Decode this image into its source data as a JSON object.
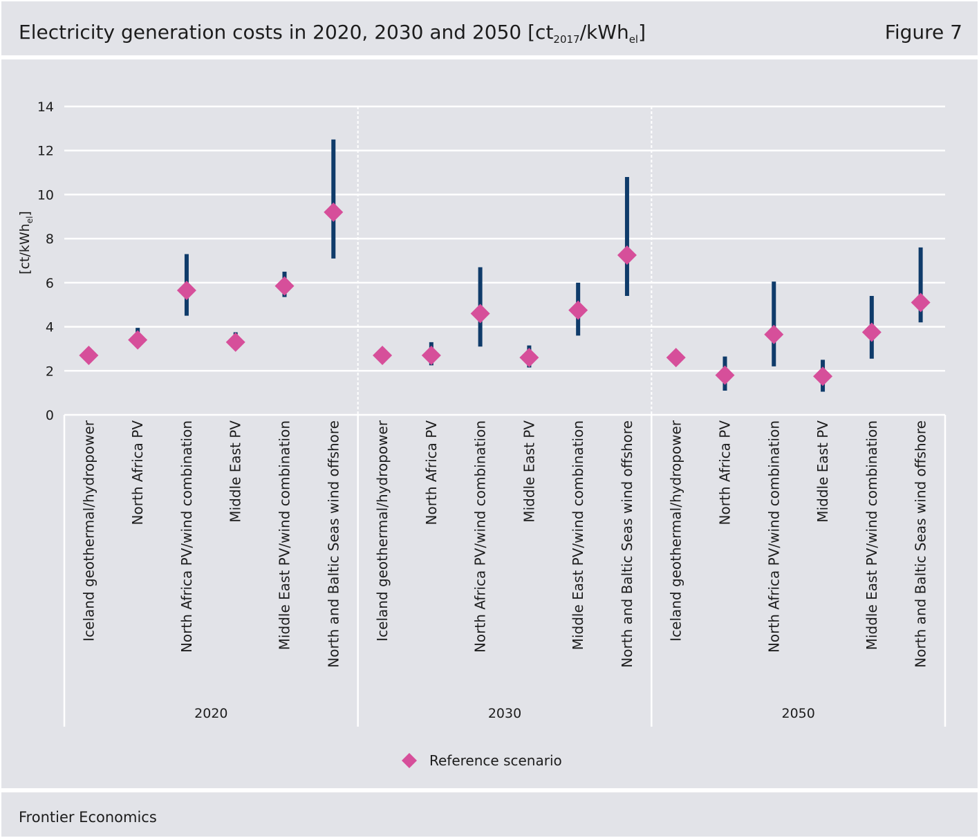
{
  "header": {
    "title_main": "Electricity generation costs in 2020, 2030 and 2050 [ct",
    "title_sub1": "2017",
    "title_mid": "/kWh",
    "title_sub2": "el",
    "title_end": "]",
    "figure_label": "Figure 7"
  },
  "footer": {
    "source": "Frontier Economics"
  },
  "chart_data": {
    "type": "scatter",
    "ylabel": "[ct/kWhel]",
    "ylim": [
      0,
      14
    ],
    "yticks": [
      0,
      2,
      4,
      6,
      8,
      10,
      12,
      14
    ],
    "grid": true,
    "legend": {
      "position": "bottom-center",
      "entries": [
        "Reference scenario"
      ]
    },
    "series": [
      {
        "name": "Reference scenario",
        "marker": "diamond",
        "color": "#d64f9a"
      }
    ],
    "range_color": "#0f3b6a",
    "groups": [
      {
        "label": "2020",
        "items": [
          {
            "category": "Iceland geothermal/hydropower",
            "value": 2.7,
            "low": null,
            "high": null
          },
          {
            "category": "North Africa PV",
            "value": 3.4,
            "low": 3.3,
            "high": 3.95
          },
          {
            "category": "North Africa PV/wind combination",
            "value": 5.65,
            "low": 4.5,
            "high": 7.3
          },
          {
            "category": "Middle East PV",
            "value": 3.3,
            "low": 3.2,
            "high": 3.75
          },
          {
            "category": "Middle East PV/wind combination",
            "value": 5.85,
            "low": 5.35,
            "high": 6.5
          },
          {
            "category": "North and Baltic Seas wind offshore",
            "value": 9.2,
            "low": 7.1,
            "high": 12.5
          }
        ]
      },
      {
        "label": "2030",
        "items": [
          {
            "category": "Iceland geothermal/hydropower",
            "value": 2.7,
            "low": null,
            "high": null
          },
          {
            "category": "North Africa PV",
            "value": 2.7,
            "low": 2.25,
            "high": 3.3
          },
          {
            "category": "North Africa PV/wind combination",
            "value": 4.6,
            "low": 3.1,
            "high": 6.7
          },
          {
            "category": "Middle East PV",
            "value": 2.6,
            "low": 2.15,
            "high": 3.15
          },
          {
            "category": "Middle East PV/wind combination",
            "value": 4.75,
            "low": 3.6,
            "high": 6.0
          },
          {
            "category": "North and Baltic Seas wind offshore",
            "value": 7.25,
            "low": 5.4,
            "high": 10.8
          }
        ]
      },
      {
        "label": "2050",
        "items": [
          {
            "category": "Iceland geothermal/hydropower",
            "value": 2.6,
            "low": null,
            "high": null
          },
          {
            "category": "North Africa PV",
            "value": 1.8,
            "low": 1.1,
            "high": 2.65
          },
          {
            "category": "North Africa PV/wind combination",
            "value": 3.65,
            "low": 2.2,
            "high": 6.05
          },
          {
            "category": "Middle East PV",
            "value": 1.75,
            "low": 1.05,
            "high": 2.5
          },
          {
            "category": "Middle East PV/wind combination",
            "value": 3.75,
            "low": 2.55,
            "high": 5.4
          },
          {
            "category": "North and Baltic Seas wind offshore",
            "value": 5.1,
            "low": 4.2,
            "high": 7.6
          }
        ]
      }
    ]
  }
}
